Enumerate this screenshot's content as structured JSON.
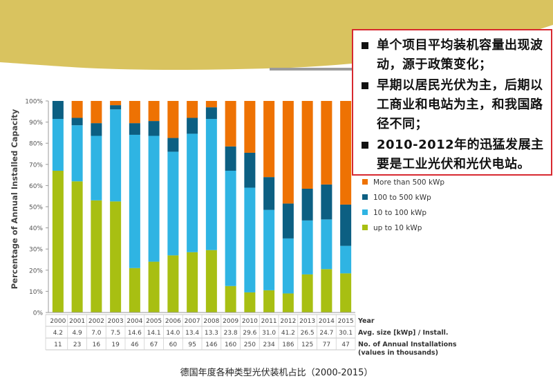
{
  "callout": {
    "items": [
      "单个项目平均装机容量出现波动，源于政策变化；",
      "早期以居民光伏为主，后期以工商业和电站为主，和我国路径不同；",
      "2010-2012年的迅猛发展主要是工业光伏和光伏电站。"
    ]
  },
  "caption": "德国年度各种类型光伏装机占比（2000-2015）",
  "chart_data": {
    "type": "bar",
    "stacked": true,
    "ylabel": "Percentage of Annual Installed Capacity",
    "ylim": [
      0,
      100
    ],
    "yticks": [
      "0%",
      "10%",
      "20%",
      "30%",
      "40%",
      "50%",
      "60%",
      "70%",
      "80%",
      "90%",
      "100%"
    ],
    "grid": false,
    "legend_position": "right",
    "categories": [
      "2000",
      "2001",
      "2002",
      "2003",
      "2004",
      "2005",
      "2006",
      "2007",
      "2008",
      "2009",
      "2010",
      "2011",
      "2012",
      "2013",
      "2014",
      "2015"
    ],
    "series": [
      {
        "name": "up to 10 kWp",
        "color": "#a8bf12",
        "values": [
          67,
          62,
          53,
          52.5,
          21,
          24,
          27,
          28.5,
          29.5,
          12.5,
          9.5,
          10.5,
          9,
          18,
          20.5,
          18.5
        ]
      },
      {
        "name": "10 to 100 kWp",
        "color": "#2fb4e3",
        "values": [
          24.5,
          26.5,
          30.5,
          43.5,
          63,
          59.5,
          49,
          56,
          62,
          54.5,
          49.5,
          38,
          26,
          25.5,
          23.5,
          13
        ]
      },
      {
        "name": "100 to 500 kWp",
        "color": "#0c5f82",
        "values": [
          8.5,
          3.5,
          6,
          2,
          5.5,
          7,
          6.5,
          7.5,
          5.5,
          11.5,
          16.5,
          15.5,
          16.5,
          15,
          16.5,
          19.5
        ]
      },
      {
        "name": "More than 500 kWp",
        "color": "#ee7203",
        "values": [
          0,
          8,
          10.5,
          2,
          10.5,
          9.5,
          17.5,
          8,
          3,
          21.5,
          24.5,
          36,
          48.5,
          41.5,
          39.5,
          49
        ]
      }
    ],
    "table": {
      "row_labels": [
        "Year",
        "Avg. size [kWp] / Install.",
        "No. of Annual Installations",
        "(values in thousands)"
      ],
      "avg_size": [
        "4.2",
        "4.9",
        "7.0",
        "7.5",
        "14.6",
        "14.1",
        "14.0",
        "13.4",
        "13.3",
        "23.8",
        "29.6",
        "31.0",
        "41.2",
        "26.5",
        "24.7",
        "30.1"
      ],
      "installations": [
        "11",
        "23",
        "16",
        "19",
        "46",
        "67",
        "60",
        "95",
        "146",
        "160",
        "250",
        "234",
        "186",
        "125",
        "77",
        "47"
      ]
    }
  }
}
